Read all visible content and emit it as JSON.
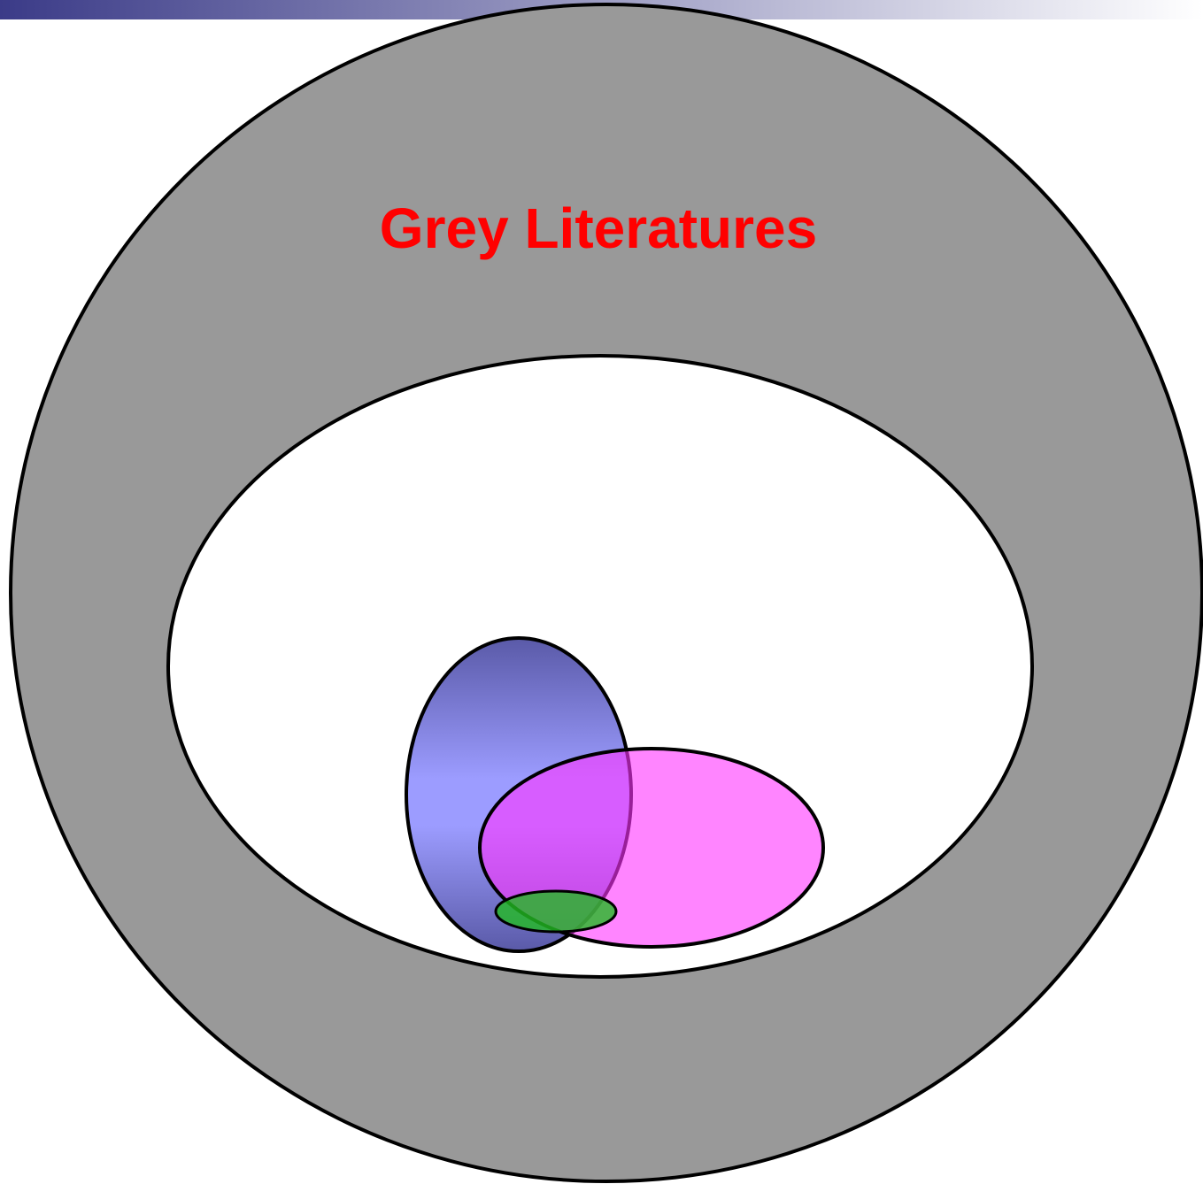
{
  "title": "Grey Literatures"
}
